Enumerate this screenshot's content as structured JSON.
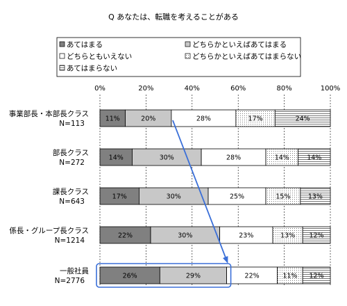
{
  "chart_data": {
    "type": "bar",
    "orientation": "horizontal",
    "stacked": true,
    "percent": true,
    "title": "Q あなたは、転職を考えることがある",
    "xlim": [
      0,
      100
    ],
    "x_ticks": [
      "0%",
      "20%",
      "40%",
      "60%",
      "80%",
      "100%"
    ],
    "categories": [
      {
        "name": "事業部長・本部長クラス",
        "n": "N=113"
      },
      {
        "name": "部長クラス",
        "n": "N=272"
      },
      {
        "name": "課長クラス",
        "n": "N=643"
      },
      {
        "name": "係長・グループ長クラス",
        "n": "N=1214"
      },
      {
        "name": "一般社員",
        "n": "N=2776"
      }
    ],
    "series": [
      {
        "name": "あてはまる",
        "color": "#808080",
        "pattern": "solid",
        "values": [
          11,
          14,
          17,
          22,
          26
        ],
        "labels": [
          "11%",
          "14%",
          "17%",
          "22%",
          "26%"
        ]
      },
      {
        "name": "どちらかといえばあてはまる",
        "color": "#c8c8c8",
        "pattern": "solid",
        "values": [
          20,
          30,
          30,
          30,
          29
        ],
        "labels": [
          "20%",
          "30%",
          "30%",
          "30%",
          "29%"
        ]
      },
      {
        "name": "どちらともいえない",
        "color": "#ffffff",
        "pattern": "solid",
        "values": [
          28,
          28,
          25,
          23,
          22
        ],
        "labels": [
          "28%",
          "28%",
          "25%",
          "23%",
          "22%"
        ]
      },
      {
        "name": "どちらかといえばあてはまらない",
        "color": "#ffffff",
        "pattern": "dots",
        "values": [
          17,
          14,
          15,
          13,
          11
        ],
        "labels": [
          "17%",
          "14%",
          "15%",
          "13%",
          "11%"
        ]
      },
      {
        "name": "あてはまらない",
        "color": "#ffffff",
        "pattern": "hlines",
        "values": [
          24,
          14,
          13,
          12,
          12
        ],
        "labels": [
          "24%",
          "14%",
          "13%",
          "12%",
          "12%"
        ]
      }
    ],
    "annotations": {
      "highlight_box_category": "一般社員",
      "arrow": "from 事業部長・本部長クラス to 一般社員",
      "highlight_color": "#3a6fd8"
    },
    "legend_position": "top"
  }
}
